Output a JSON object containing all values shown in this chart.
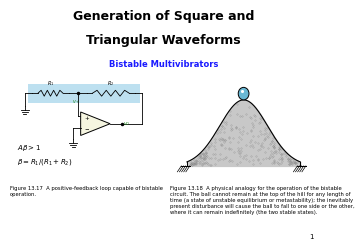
{
  "title_line1": "Generation of Square and",
  "title_line2": "Triangular Waveforms",
  "subtitle": "Bistable Multivibrators",
  "subtitle_color": "#1a1aff",
  "title_fontsize": 9,
  "subtitle_fontsize": 6,
  "caption_left": "Figure 13.17  A positive-feedback loop capable of bistable\noperation.",
  "caption_right": "Figure 13.18  A physical analogy for the operation of the bistable\ncircuit. The ball cannot remain at the top of the hill for any length of\ntime (a state of unstable equilibrium or metastability); the inevitably\npresent disturbance will cause the ball to fall to one side or the other,\nwhere it can remain indefinitely (the two stable states).",
  "caption_fontsize": 3.8,
  "page_number": "1",
  "bg_color": "#ffffff",
  "circuit_bg": "#bde0f0",
  "hill_color": "#c8c8c8",
  "hill_edge": "#000000",
  "ball_color": "#6ab8d4",
  "ball_edge": "#000000"
}
